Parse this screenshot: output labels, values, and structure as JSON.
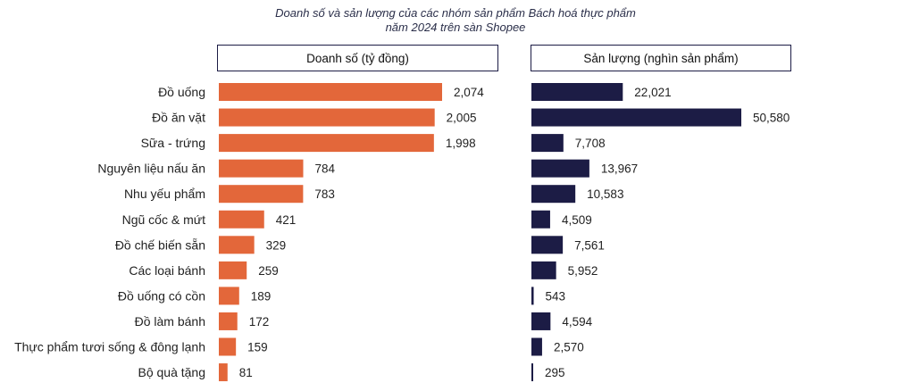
{
  "title_line1": "Doanh số và sản lượng của các nhóm sản phẩm Bách hoá thực phẩm",
  "title_line2": "năm 2024 trên sàn Shopee",
  "chart_data": {
    "type": "bar",
    "orientation": "horizontal",
    "categories": [
      "Đồ uống",
      "Đồ ăn vặt",
      "Sữa - trứng",
      "Nguyên liệu nấu ăn",
      "Nhu yếu phẩm",
      "Ngũ cốc & mứt",
      "Đồ chế biến sẵn",
      "Các loại bánh",
      "Đồ uống có cồn",
      "Đồ làm bánh",
      "Thực phẩm tươi sống & đông lạnh",
      "Bộ quà tặng"
    ],
    "panels": [
      {
        "header": "Doanh số (tỷ đồng)",
        "color": "#e3673a",
        "values": [
          2074,
          2005,
          1998,
          784,
          783,
          421,
          329,
          259,
          189,
          172,
          159,
          81
        ],
        "labels": [
          "2,074",
          "2,005",
          "1,998",
          "784",
          "783",
          "421",
          "329",
          "259",
          "189",
          "172",
          "159",
          "81"
        ]
      },
      {
        "header": "Sản lượng (nghìn sản phẩm)",
        "color": "#1c1c45",
        "values": [
          22021,
          50580,
          7708,
          13967,
          10583,
          4509,
          7561,
          5952,
          543,
          4594,
          2570,
          295
        ],
        "labels": [
          "22,021",
          "50,580",
          "7,708",
          "13,967",
          "10,583",
          "4,509",
          "7,561",
          "5,952",
          "543",
          "4,594",
          "2,570",
          "295"
        ]
      }
    ]
  }
}
